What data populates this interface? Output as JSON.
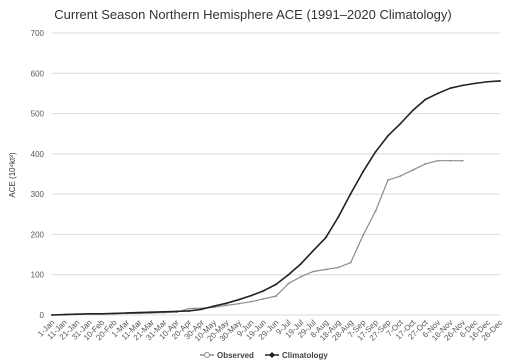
{
  "chart_data": {
    "type": "line",
    "title": "Current Season Northern Hemisphere ACE (1991–2020 Climatology)",
    "xlabel": "",
    "ylabel": "ACE (10⁴kt²)",
    "ylim": [
      0,
      700
    ],
    "yticks": [
      0,
      100,
      200,
      300,
      400,
      500,
      600,
      700
    ],
    "grid": true,
    "legend_position": "bottom",
    "categories": [
      "1-Jan",
      "11-Jan",
      "21-Jan",
      "31-Jan",
      "10-Feb",
      "20-Feb",
      "2-Mar",
      "12-Mar",
      "22-Mar",
      "1-Apr",
      "11-Apr",
      "21-Apr",
      "1-May",
      "11-May",
      "21-May",
      "31-May",
      "10-Jun",
      "20-Jun",
      "30-Jun",
      "10-Jul",
      "20-Jul",
      "30-Jul",
      "9-Aug",
      "19-Aug",
      "29-Aug",
      "8-Sep",
      "18-Sep",
      "28-Sep",
      "8-Oct",
      "18-Oct",
      "28-Oct",
      "7-Nov",
      "17-Nov",
      "27-Nov",
      "7-Dec",
      "17-Dec",
      "27-Dec"
    ],
    "xtick_labels": [
      "1-Jan",
      "11-Jan",
      "21-Jan",
      "31-Jan",
      "10-Feb",
      "20-Feb",
      "1-Mar",
      "11-Mar",
      "21-Mar",
      "31-Mar",
      "10-Apr",
      "20-Apr",
      "30-Apr",
      "10-May",
      "20-May",
      "30-May",
      "9-Jun",
      "19-Jun",
      "29-Jun",
      "9-Jul",
      "19-Jul",
      "29-Jul",
      "8-Aug",
      "18-Aug",
      "28-Aug",
      "7-Sep",
      "17-Sep",
      "27-Sep",
      "7-Oct",
      "17-Oct",
      "27-Oct",
      "6-Nov",
      "16-Nov",
      "26-Nov",
      "6-Dec",
      "16-Dec",
      "26-Dec"
    ],
    "series": [
      {
        "name": "Observed",
        "color": "#8c8c8c",
        "marker": "circle-open",
        "values": [
          0,
          1,
          2,
          3,
          3,
          3,
          4,
          4,
          5,
          6,
          7,
          16,
          17,
          19,
          24,
          28,
          33,
          40,
          47,
          78,
          95,
          108,
          113,
          118,
          130,
          198,
          258,
          335,
          345,
          360,
          375,
          383,
          383,
          383,
          null,
          null,
          null
        ]
      },
      {
        "name": "Climatology",
        "color": "#222222",
        "marker": "diamond",
        "values": [
          0,
          1,
          2,
          3,
          3,
          4,
          5,
          6,
          7,
          8,
          9,
          10,
          14,
          22,
          29,
          38,
          48,
          60,
          76,
          100,
          127,
          160,
          192,
          243,
          301,
          356,
          405,
          445,
          475,
          508,
          535,
          550,
          563,
          570,
          575,
          579,
          581
        ]
      }
    ]
  }
}
